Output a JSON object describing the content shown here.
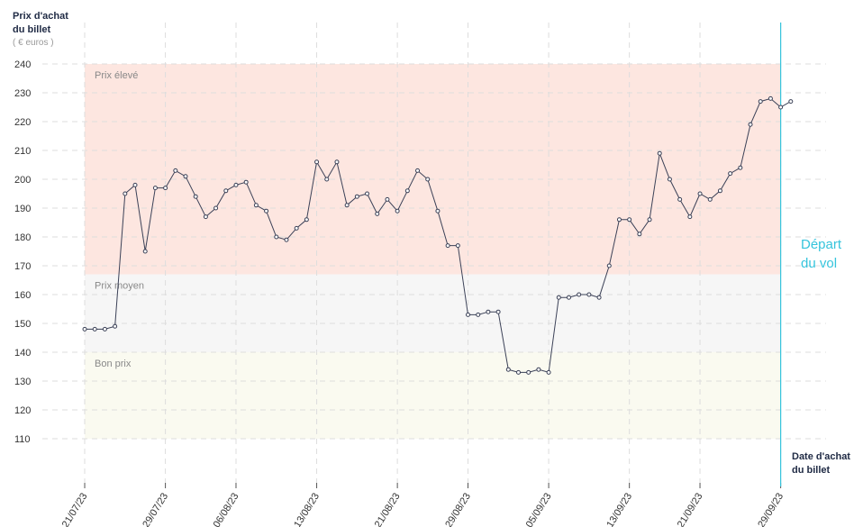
{
  "chart_data": {
    "type": "line",
    "y_title": [
      "Prix d'achat",
      "du billet",
      "( € euros )"
    ],
    "x_title": [
      "Date d'achat",
      "du billet"
    ],
    "x": [
      0,
      1,
      2,
      3,
      4,
      5,
      6,
      7,
      8,
      9,
      10,
      11,
      12,
      13,
      14,
      15,
      16,
      17,
      18,
      19,
      20,
      21,
      22,
      23,
      24,
      25,
      26,
      27,
      28,
      29,
      30,
      31,
      32,
      33,
      34,
      35,
      36,
      37,
      38,
      39,
      40,
      41,
      42,
      43,
      44,
      45,
      46,
      47,
      48,
      49,
      50,
      51,
      52,
      53,
      54,
      55,
      56,
      57,
      58,
      59,
      60,
      61,
      62,
      63,
      64,
      65,
      66,
      67,
      68,
      69,
      70
    ],
    "series": [
      {
        "name": "Prix",
        "color": "#3b4157",
        "values": [
          148,
          148,
          148,
          149,
          195,
          198,
          175,
          197,
          197,
          203,
          201,
          194,
          187,
          190,
          196,
          198,
          199,
          191,
          189,
          180,
          179,
          183,
          186,
          206,
          200,
          206,
          191,
          194,
          195,
          188,
          193,
          189,
          196,
          203,
          200,
          189,
          177,
          177,
          153,
          153,
          154,
          154,
          134,
          133,
          133,
          134,
          133,
          159,
          159,
          160,
          160,
          159,
          170,
          186,
          186,
          181,
          186,
          209,
          200,
          193,
          187,
          195,
          193,
          196,
          202,
          204,
          219,
          227,
          228,
          225,
          227
        ]
      }
    ],
    "xlim": [
      -4.2,
      73.5
    ],
    "ylim": [
      110,
      240
    ],
    "yticks": [
      110,
      120,
      130,
      140,
      150,
      160,
      170,
      180,
      190,
      200,
      210,
      220,
      230,
      240
    ],
    "xticks": [
      {
        "value": 0,
        "label": "21/07/23"
      },
      {
        "value": 8,
        "label": "29/07/23"
      },
      {
        "value": 15,
        "label": "06/08/23"
      },
      {
        "value": 23,
        "label": "13/08/23"
      },
      {
        "value": 31,
        "label": "21/08/23"
      },
      {
        "value": 38,
        "label": "29/08/23"
      },
      {
        "value": 46,
        "label": "05/09/23"
      },
      {
        "value": 54,
        "label": "13/09/23"
      },
      {
        "value": 61,
        "label": "21/09/23"
      },
      {
        "value": 69,
        "label": "29/09/23"
      }
    ],
    "zones": [
      {
        "label": "Prix élevé",
        "from": 167,
        "to": 240,
        "color": "#fde6e0"
      },
      {
        "label": "Prix moyen",
        "from": 140,
        "to": 167,
        "color": "#f6f6f6"
      },
      {
        "label": "Bon prix",
        "from": 110,
        "to": 140,
        "color": "#fafaf0"
      }
    ],
    "departure": {
      "x": 69,
      "label": [
        "Départ",
        "du vol"
      ],
      "color": "#35c4dc"
    },
    "grid": true
  }
}
